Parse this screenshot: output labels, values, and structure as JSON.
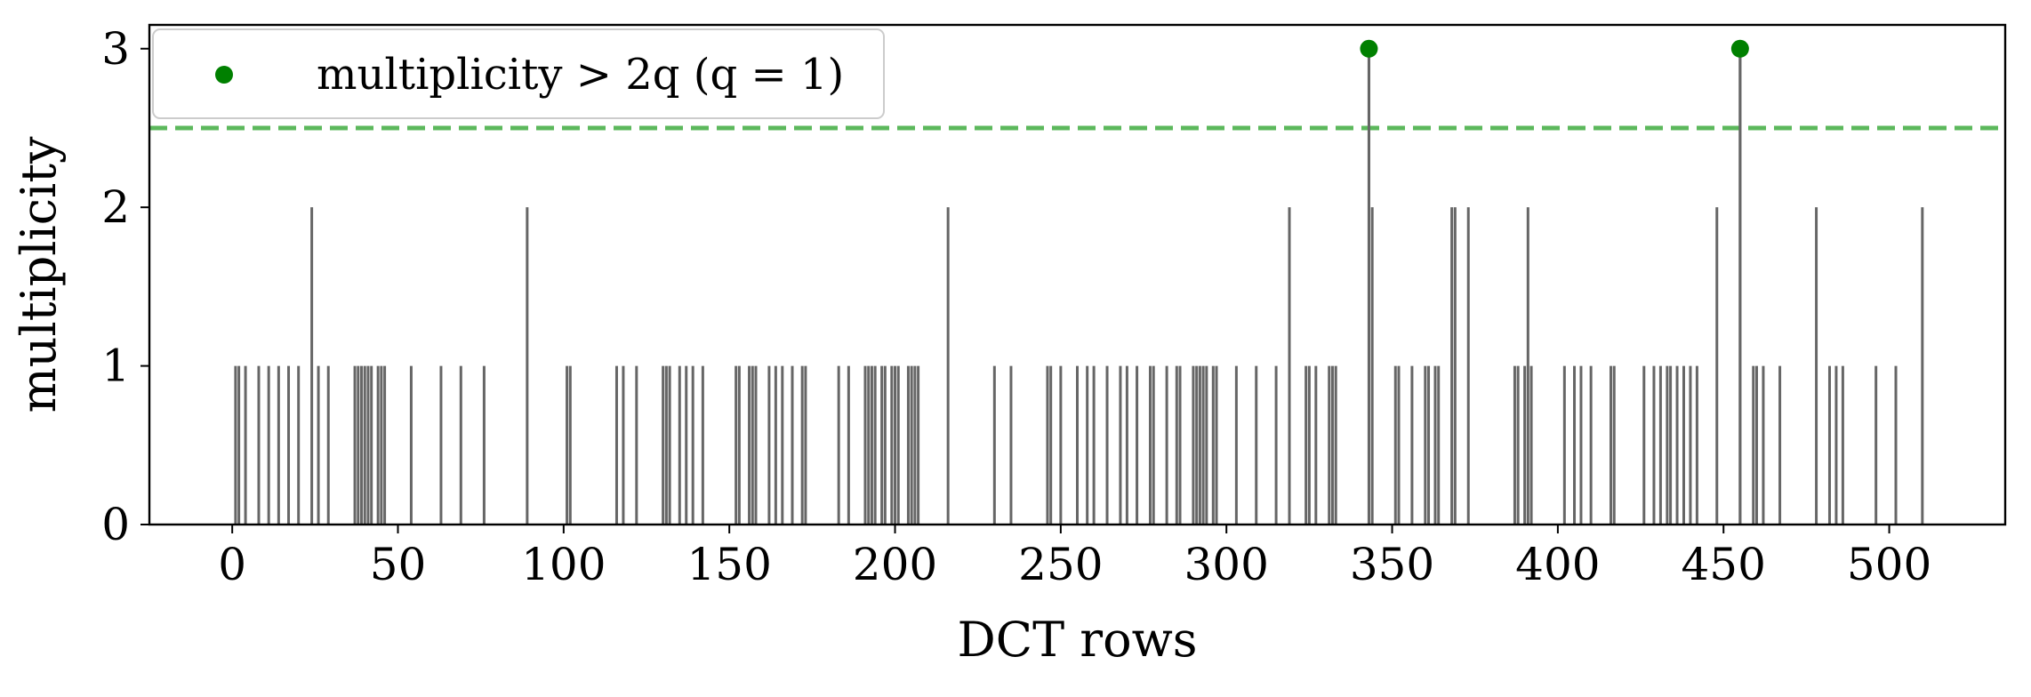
{
  "chart_data": {
    "type": "bar",
    "xlabel": "DCT rows",
    "ylabel": "multiplicity",
    "xlim": [
      -25,
      535
    ],
    "ylim": [
      0,
      3.15
    ],
    "xticks": [
      0,
      50,
      100,
      150,
      200,
      250,
      300,
      350,
      400,
      450,
      500
    ],
    "yticks": [
      0,
      1,
      2,
      3
    ],
    "grid": false,
    "bar_color": "#666666",
    "highlight_color": "#008000",
    "threshold_color": "#5cb85c",
    "threshold": 2.5,
    "legend": {
      "placement": "upper-left",
      "marker": "green dot",
      "label": "multiplicity > 2q (q = 1)"
    },
    "rows": [
      1,
      2,
      4,
      8,
      11,
      14,
      17,
      20,
      24,
      26,
      29,
      37,
      38,
      39,
      40,
      41,
      42,
      44,
      45,
      46,
      54,
      63,
      69,
      76,
      89,
      101,
      102,
      116,
      118,
      122,
      130,
      131,
      132,
      135,
      137,
      139,
      142,
      152,
      153,
      156,
      157,
      158,
      162,
      164,
      166,
      169,
      172,
      173,
      183,
      186,
      191,
      192,
      193,
      194,
      196,
      197,
      199,
      200,
      201,
      204,
      205,
      206,
      207,
      216,
      230,
      235,
      246,
      247,
      250,
      255,
      258,
      260,
      264,
      268,
      270,
      273,
      277,
      278,
      282,
      285,
      286,
      290,
      291,
      292,
      293,
      294,
      296,
      297,
      303,
      309,
      315,
      319,
      324,
      325,
      327,
      331,
      332,
      333,
      343,
      344,
      351,
      352,
      356,
      360,
      361,
      363,
      364,
      368,
      369,
      373,
      387,
      388,
      390,
      391,
      392,
      402,
      405,
      407,
      410,
      416,
      417,
      426,
      429,
      431,
      433,
      434,
      436,
      438,
      440,
      442,
      448,
      455,
      459,
      460,
      462,
      467,
      478,
      482,
      484,
      486,
      496,
      502,
      510
    ],
    "multiplicity": [
      1,
      1,
      1,
      1,
      1,
      1,
      1,
      1,
      2,
      1,
      1,
      1,
      1,
      1,
      1,
      1,
      1,
      1,
      1,
      1,
      1,
      1,
      1,
      1,
      2,
      1,
      1,
      1,
      1,
      1,
      1,
      1,
      1,
      1,
      1,
      1,
      1,
      1,
      1,
      1,
      1,
      1,
      1,
      1,
      1,
      1,
      1,
      1,
      1,
      1,
      1,
      1,
      1,
      1,
      1,
      1,
      1,
      1,
      1,
      1,
      1,
      1,
      1,
      2,
      1,
      1,
      1,
      1,
      1,
      1,
      1,
      1,
      1,
      1,
      1,
      1,
      1,
      1,
      1,
      1,
      1,
      1,
      1,
      1,
      1,
      1,
      1,
      1,
      1,
      1,
      1,
      2,
      1,
      1,
      1,
      1,
      1,
      1,
      3,
      2,
      1,
      1,
      1,
      1,
      1,
      1,
      1,
      2,
      2,
      2,
      1,
      1,
      1,
      2,
      1,
      1,
      1,
      1,
      1,
      1,
      1,
      1,
      1,
      1,
      1,
      1,
      1,
      1,
      1,
      1,
      2,
      3,
      1,
      1,
      1,
      1,
      2,
      1,
      1,
      1,
      1,
      1,
      2
    ],
    "highlight_points": [
      {
        "x": 343,
        "y": 3
      },
      {
        "x": 455,
        "y": 3
      }
    ]
  }
}
